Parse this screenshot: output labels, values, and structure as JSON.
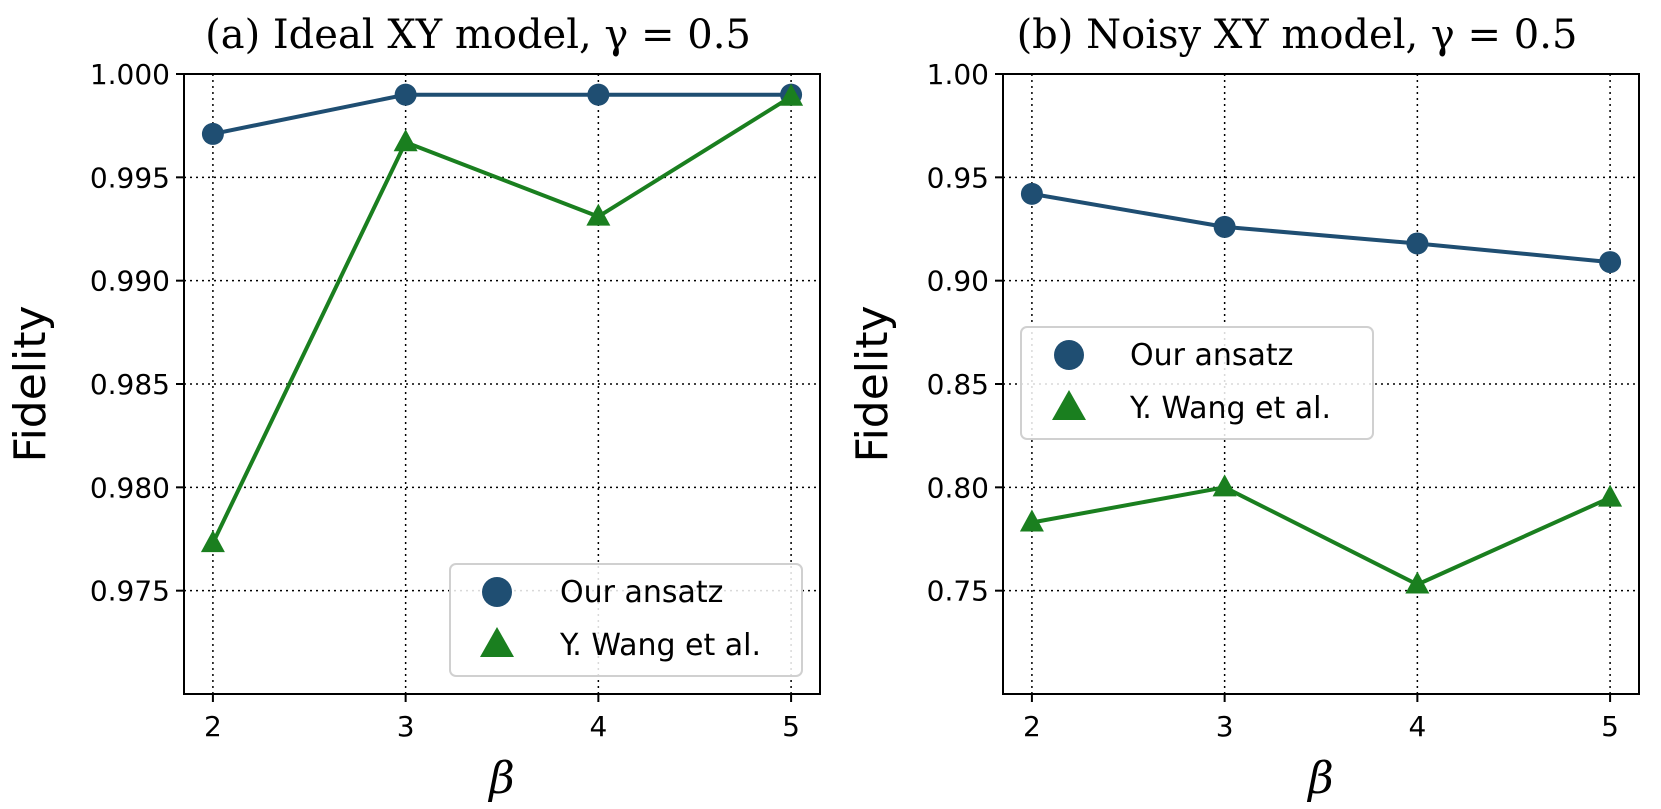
{
  "colors": {
    "ours": "#1f4e72",
    "wang": "#1a7f1f"
  },
  "chart_data": [
    {
      "type": "line",
      "title": "(a) Ideal XY model, γ = 0.5",
      "xlabel": "β",
      "ylabel": "Fidelity",
      "x": [
        2,
        3,
        4,
        5
      ],
      "xticks": [
        "2",
        "3",
        "4",
        "5"
      ],
      "xlim": [
        1.85,
        5.15
      ],
      "ylim": [
        0.97,
        1.0
      ],
      "yticks": [
        "0.975",
        "0.980",
        "0.985",
        "0.990",
        "0.995",
        "1.000"
      ],
      "grid": true,
      "legend_position": "lower-right",
      "series": [
        {
          "name": "Our ansatz",
          "marker": "circle",
          "values": [
            0.9971,
            0.999,
            0.999,
            0.999
          ]
        },
        {
          "name": "Y. Wang et al.",
          "marker": "triangle",
          "values": [
            0.9773,
            0.9967,
            0.9931,
            0.9989
          ]
        }
      ]
    },
    {
      "type": "line",
      "title": "(b) Noisy XY model, γ = 0.5",
      "xlabel": "β",
      "ylabel": "Fidelity",
      "x": [
        2,
        3,
        4,
        5
      ],
      "xticks": [
        "2",
        "3",
        "4",
        "5"
      ],
      "xlim": [
        1.85,
        5.15
      ],
      "ylim": [
        0.7,
        1.0
      ],
      "yticks": [
        "0.75",
        "0.80",
        "0.85",
        "0.90",
        "0.95",
        "1.00"
      ],
      "grid": true,
      "legend_position": "center-left",
      "series": [
        {
          "name": "Our ansatz",
          "marker": "circle",
          "values": [
            0.942,
            0.926,
            0.918,
            0.909
          ]
        },
        {
          "name": "Y. Wang et al.",
          "marker": "triangle",
          "values": [
            0.783,
            0.8,
            0.753,
            0.795
          ]
        }
      ]
    }
  ]
}
